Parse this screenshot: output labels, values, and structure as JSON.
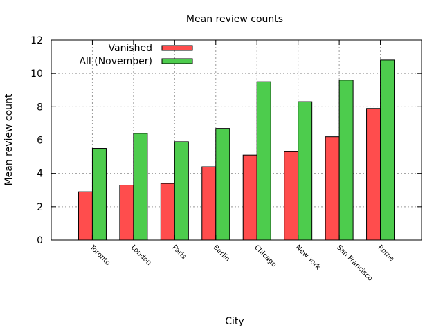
{
  "chart_data": {
    "type": "bar",
    "title": "Mean review counts",
    "xlabel": "City",
    "ylabel": "Mean review count",
    "categories": [
      "Toronto",
      "London",
      "Paris",
      "Berlin",
      "Chicago",
      "New York",
      "San Francisco",
      "Rome"
    ],
    "series": [
      {
        "name": "Vanished",
        "color": "#ff4d4d",
        "values": [
          2.9,
          3.3,
          3.4,
          4.4,
          5.1,
          5.3,
          6.2,
          7.9
        ]
      },
      {
        "name": "All (November)",
        "color": "#4dcc4d",
        "values": [
          5.5,
          6.4,
          5.9,
          6.7,
          9.5,
          8.3,
          9.6,
          10.8
        ]
      }
    ],
    "ylim": [
      0,
      12
    ],
    "yticks": [
      0,
      2,
      4,
      6,
      8,
      10,
      12
    ],
    "grid": true,
    "legend_position": "top-left"
  }
}
